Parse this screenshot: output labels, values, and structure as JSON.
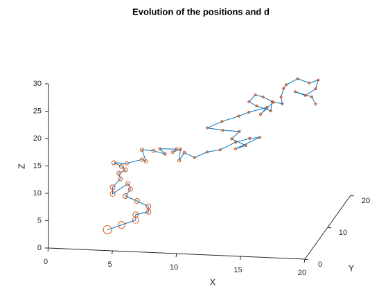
{
  "chart_data": {
    "type": "line3d",
    "title": "Evolution of the positions and d",
    "xlabel": "X",
    "ylabel": "Y",
    "zlabel": "Z",
    "line_color": "#0072bd",
    "marker_color": "#d95319",
    "xlim": [
      0,
      20
    ],
    "ylim": [
      0,
      20
    ],
    "zlim": [
      0,
      30
    ],
    "xticks": [
      0,
      5,
      10,
      15,
      20
    ],
    "yticks": [
      0,
      10,
      20
    ],
    "zticks": [
      0,
      5,
      10,
      15,
      20,
      25,
      30
    ],
    "x": [
      4.6,
      5.7,
      6.8,
      6.8,
      7.8,
      7.8,
      6.9,
      6.0,
      6.4,
      6.2,
      5.0,
      5.0,
      5.6,
      5.5,
      6.0,
      5.7,
      5.1,
      6.1,
      7.3,
      7.6,
      6.4,
      7.3,
      8.2,
      7.8,
      9.1,
      8.8,
      9.4,
      9.3,
      9.7,
      10.5,
      11.5,
      12.5,
      13.7,
      14.8,
      15.6,
      13.7,
      14.5,
      13.4,
      14.0,
      12.7,
      11.5,
      11.4,
      12.7,
      13.5,
      14.9,
      14.4,
      15.4,
      14.6,
      14.0,
      13.5,
      14.1,
      15.2,
      15.3,
      16.1,
      16.0,
      16.2,
      16.4,
      17.3,
      18.2,
      18.9,
      18.7,
      17.9,
      17.1,
      18.4,
      18.7
    ],
    "y": [
      0,
      0,
      0,
      0,
      0,
      0,
      0,
      0,
      0,
      0,
      0,
      0,
      0,
      0,
      0,
      0,
      0,
      0,
      0,
      0,
      5,
      5,
      5,
      5,
      5,
      5,
      5,
      5,
      5,
      5,
      5,
      5,
      5,
      5,
      5,
      5,
      5,
      5,
      5,
      5,
      5,
      12,
      12,
      12,
      12,
      12,
      12,
      12,
      12,
      12,
      12,
      12,
      12,
      12,
      12,
      12,
      12,
      12,
      12,
      12,
      12,
      12,
      12,
      12,
      12
    ],
    "z": [
      3.8,
      4.8,
      5.8,
      6.8,
      7.4,
      8.4,
      9.3,
      10.1,
      11.4,
      12.4,
      10.4,
      11.6,
      13.2,
      14.2,
      14.9,
      15.5,
      16.1,
      16.1,
      16.9,
      16.6,
      15.7,
      15.6,
      15.1,
      16.0,
      16.1,
      15.5,
      16.1,
      14.0,
      15.5,
      14.7,
      15.8,
      16.3,
      17.8,
      18.6,
      18.9,
      16.6,
      17.3,
      18.4,
      19.8,
      19.9,
      20.2,
      17.3,
      18.4,
      19.2,
      20.2,
      18.9,
      21.2,
      22.1,
      22.4,
      21.1,
      20.4,
      19.6,
      21.3,
      21.0,
      22.2,
      23.8,
      24.5,
      25.7,
      25.0,
      25.6,
      24.0,
      22.7,
      23.3,
      22.5,
      21.2
    ],
    "d": [
      6,
      5,
      4.5,
      4,
      3.5,
      3.5,
      3.5,
      3.5,
      3,
      3,
      3.5,
      3.5,
      3,
      3,
      3,
      3,
      3,
      2.5,
      2.5,
      2.5,
      2.5,
      2.5,
      2,
      2,
      2,
      2,
      2,
      2,
      2,
      1.5,
      1.5,
      1.5,
      1.5,
      1.5,
      1.5,
      1.5,
      1.5,
      1.5,
      1.5,
      1.5,
      1.5,
      1.5,
      1.5,
      1.5,
      1.5,
      1.5,
      1.5,
      1.5,
      1.5,
      1.5,
      1.5,
      1.5,
      1.5,
      1.5,
      1.5,
      1.5,
      1.5,
      1.5,
      1.5,
      1.5,
      1.5,
      1.5,
      1.5,
      1.5,
      1.5
    ]
  }
}
